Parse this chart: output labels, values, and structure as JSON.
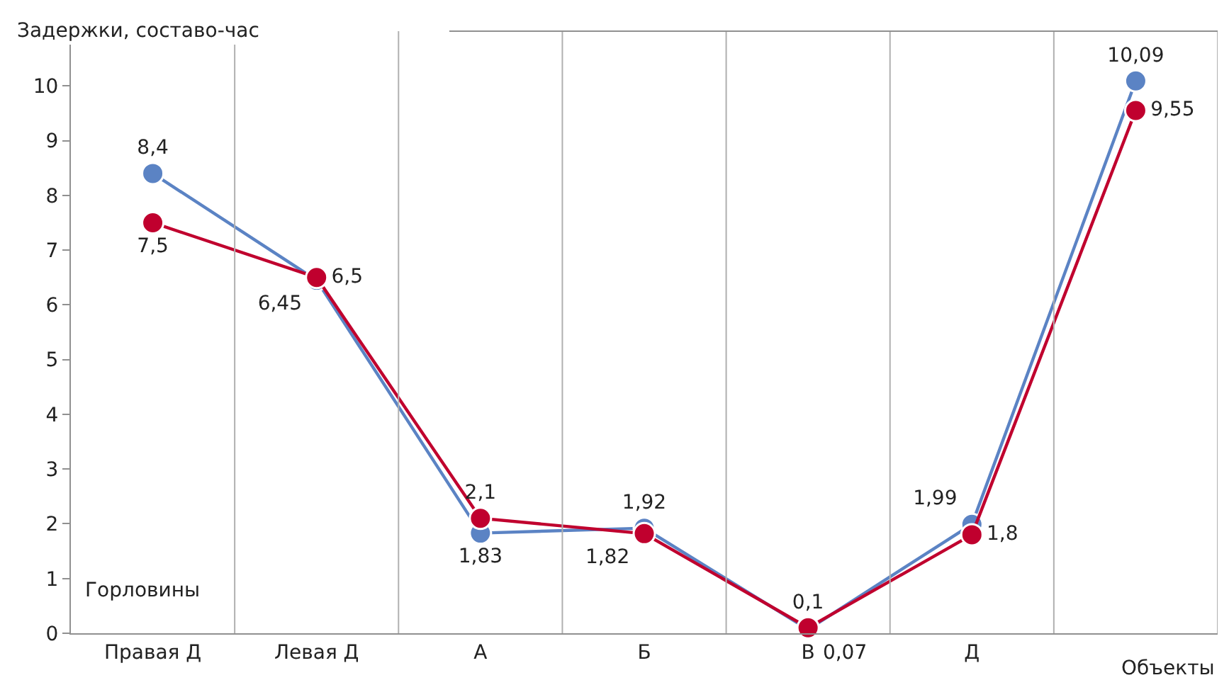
{
  "chart_data": {
    "type": "line",
    "ylabel": "Задержки, составо-час",
    "xlabel": "Объекты",
    "annotations": [
      "Горловины"
    ],
    "categories": [
      "Правая Д",
      "Левая Д",
      "А",
      "Б",
      "В",
      "Д",
      null
    ],
    "series": [
      {
        "color": "#5b83c4",
        "values": [
          8.4,
          6.45,
          1.83,
          1.92,
          0.07,
          1.99,
          10.09
        ],
        "value_labels": [
          "8,4",
          "6,45",
          "1,83",
          "1,92",
          "0,07",
          "1,99",
          "10,09"
        ]
      },
      {
        "color": "#c0002e",
        "values": [
          7.5,
          6.5,
          2.1,
          1.82,
          0.1,
          1.8,
          9.55
        ],
        "value_labels": [
          "7,5",
          "6,5",
          "2,1",
          "1,82",
          "0,1",
          "1,8",
          "9,55"
        ]
      }
    ],
    "ylim": [
      0,
      11
    ],
    "yticks": [
      0,
      1,
      2,
      3,
      4,
      5,
      6,
      7,
      8,
      9,
      10
    ],
    "grid": "x",
    "marker": "circle",
    "line_style": "solid",
    "legend": false
  }
}
